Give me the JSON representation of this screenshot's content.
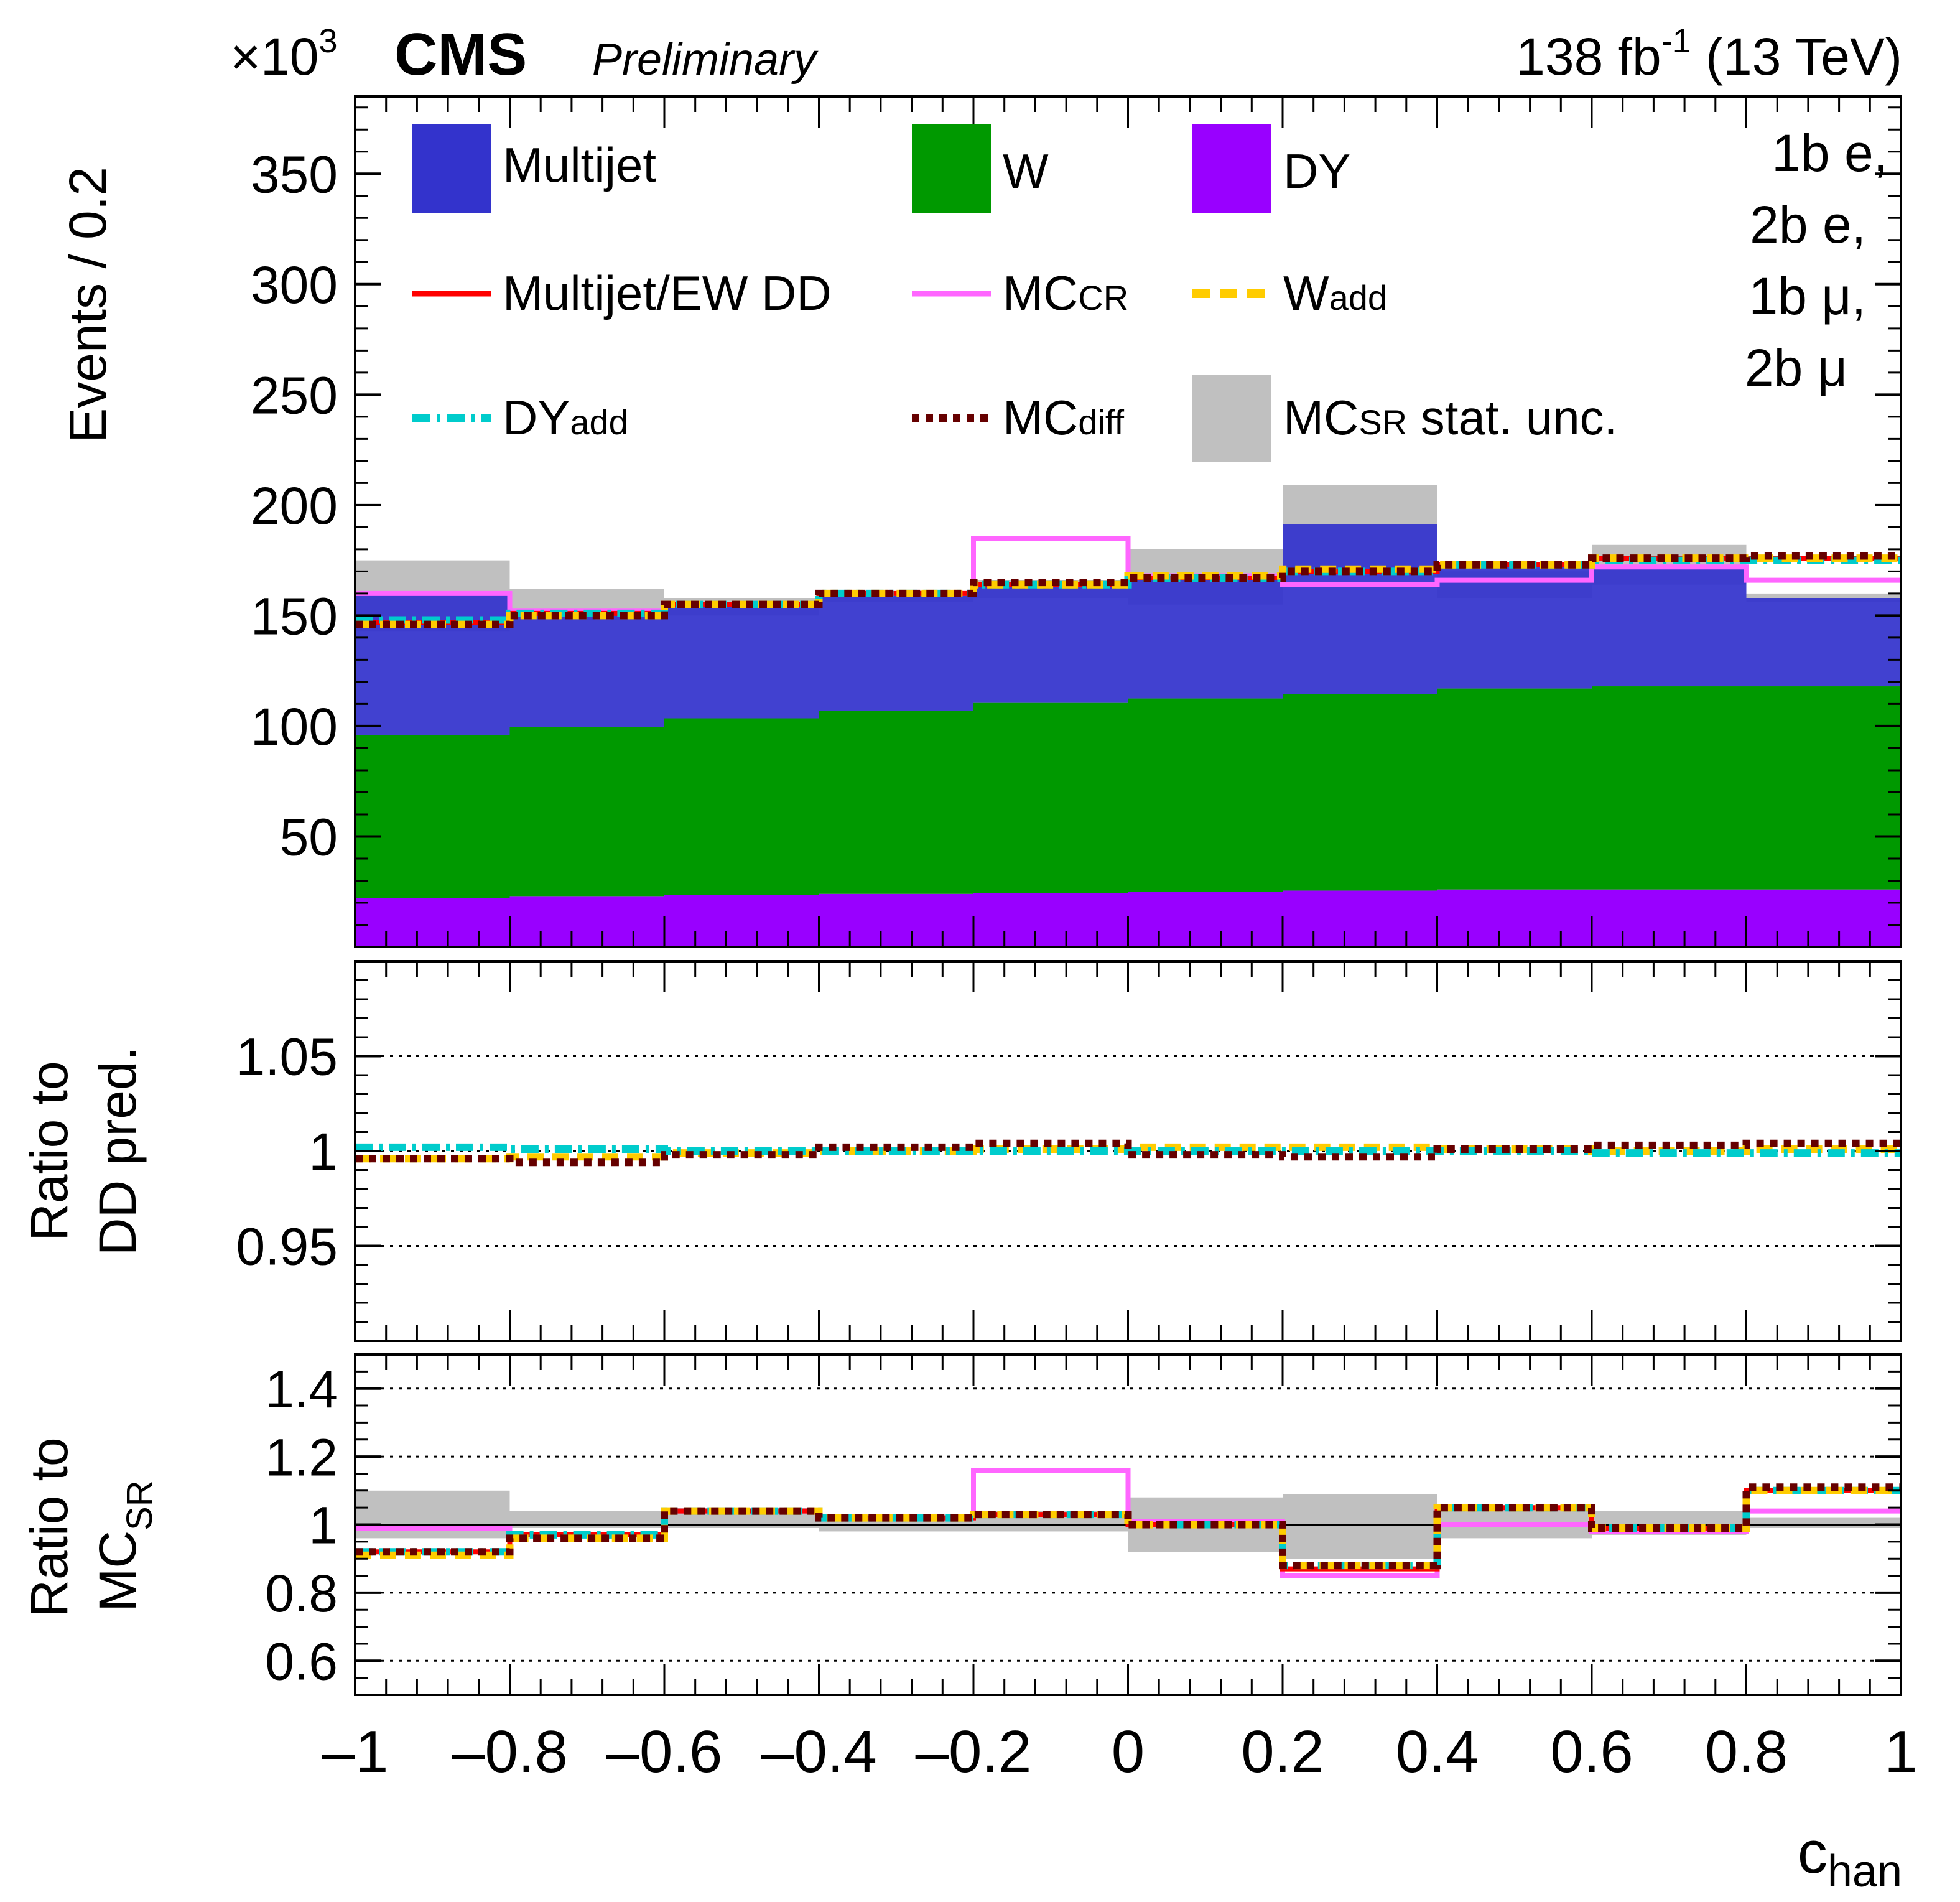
{
  "header": {
    "exponent_prefix": "×10",
    "exponent": "3",
    "experiment": "CMS",
    "status": "Preliminary",
    "lumi_value": "138 fb",
    "lumi_exp": "-1",
    "energy": "(13 TeV)"
  },
  "category_lines": [
    "1b e,",
    "2b e,",
    "1b μ,",
    "2b μ"
  ],
  "legend": {
    "multijet": "Multijet",
    "w": "W",
    "dy": "DY",
    "multijet_ew_dd": "Multijet/EW DD",
    "mc_cr_main": "MC",
    "mc_cr_sub": "CR",
    "w_add_main": "W",
    "w_add_sub": "add",
    "dy_add_main": "DY",
    "dy_add_sub": "add",
    "mc_diff_main": "MC",
    "mc_diff_sub": "diff",
    "mc_sr_main": "MC",
    "mc_sr_sub": "SR",
    "mc_sr_rest": " stat. unc."
  },
  "colors": {
    "multijet": "#3333cc",
    "w": "#009900",
    "dy": "#9900ff",
    "multijet_ew_dd": "#ff0000",
    "mc_cr": "#ff66ff",
    "w_add": "#ffcc00",
    "dy_add": "#00cccc",
    "mc_diff": "#660000",
    "mc_sr_unc": "#c0c0c0"
  },
  "axes": {
    "xlabel_main": "c",
    "xlabel_sub": "han",
    "top_ylabel": "Events / 0.2",
    "mid_ylabel_line1": "Ratio to",
    "mid_ylabel_line2": "DD pred.",
    "bot_ylabel_line1": "Ratio to",
    "bot_ylabel_line2": "MC",
    "bot_ylabel_sub": "SR"
  },
  "chart_data": {
    "type": "bar",
    "bin_edges": [
      -1,
      -0.8,
      -0.6,
      -0.4,
      -0.2,
      0,
      0.2,
      0.4,
      0.6,
      0.8,
      1
    ],
    "x_ticks": [
      {
        "v": -1,
        "t": "–1"
      },
      {
        "v": -0.8,
        "t": "–0.8"
      },
      {
        "v": -0.6,
        "t": "–0.6"
      },
      {
        "v": -0.4,
        "t": "–0.4"
      },
      {
        "v": -0.2,
        "t": "–0.2"
      },
      {
        "v": 0,
        "t": "0"
      },
      {
        "v": 0.2,
        "t": "0.2"
      },
      {
        "v": 0.4,
        "t": "0.4"
      },
      {
        "v": 0.6,
        "t": "0.6"
      },
      {
        "v": 0.8,
        "t": "0.8"
      },
      {
        "v": 1,
        "t": "1"
      }
    ],
    "xlim": [
      -1,
      1
    ],
    "top_panel": {
      "ylim": [
        0,
        385
      ],
      "y_ticks": [
        "50",
        "100",
        "150",
        "200",
        "250",
        "300",
        "350"
      ],
      "stack_order": [
        "dy",
        "w",
        "multijet"
      ],
      "stacked": {
        "dy": [
          22,
          23,
          23.5,
          24,
          24.5,
          25,
          25.5,
          26,
          26,
          26
        ],
        "w": [
          74,
          76.5,
          80,
          83,
          86,
          87.5,
          89,
          91,
          92,
          92
        ],
        "multijet": [
          64,
          52,
          52,
          53,
          53.5,
          56,
          77,
          55,
          55,
          40
        ]
      },
      "mc_sr_unc": {
        "low": [
          143,
          148,
          150,
          156,
          158,
          155,
          172,
          158,
          164,
          156
        ],
        "high": [
          175,
          162,
          158,
          161,
          166,
          180,
          209,
          170,
          182,
          160
        ]
      },
      "lines": {
        "multijet_ew_dd": [
          147,
          151,
          155,
          160,
          164,
          167,
          170,
          173,
          176,
          176
        ],
        "mc_cr": [
          160,
          152,
          155,
          160,
          185,
          168,
          164,
          166,
          172,
          166
        ],
        "w_add": [
          146,
          150,
          155,
          160,
          164,
          168,
          171,
          173,
          176,
          176
        ],
        "dy_add": [
          148,
          151,
          155,
          160,
          164,
          167,
          170,
          173,
          175,
          175
        ],
        "mc_diff": [
          146,
          150,
          155,
          160,
          165,
          167,
          170,
          173,
          176,
          177
        ]
      }
    },
    "mid_panel": {
      "ylim": [
        0.9,
        1.1
      ],
      "y_ticks": [
        {
          "v": 0.95,
          "t": "0.95"
        },
        {
          "v": 1,
          "t": "1"
        },
        {
          "v": 1.05,
          "t": "1.05"
        }
      ],
      "grid": true,
      "lines": {
        "w_add": [
          0.996,
          0.997,
          0.999,
          1.0,
          1.001,
          1.002,
          1.002,
          1.001,
          1.0,
          1.001
        ],
        "dy_add": [
          1.002,
          1.001,
          1.0,
          1.0,
          1.0,
          1.0,
          1.0,
          1.0,
          0.999,
          0.999
        ],
        "mc_diff": [
          0.996,
          0.994,
          0.998,
          1.002,
          1.004,
          0.998,
          0.997,
          1.001,
          1.003,
          1.004
        ]
      }
    },
    "bot_panel": {
      "ylim": [
        0.5,
        1.5
      ],
      "y_ticks": [
        {
          "v": 0.6,
          "t": "0.6"
        },
        {
          "v": 0.8,
          "t": "0.8"
        },
        {
          "v": 1,
          "t": "1"
        },
        {
          "v": 1.2,
          "t": "1.2"
        },
        {
          "v": 1.4,
          "t": "1.4"
        }
      ],
      "grid": true,
      "unc_band": {
        "low": [
          0.96,
          0.99,
          0.99,
          0.98,
          0.98,
          0.92,
          0.9,
          0.96,
          0.97,
          0.99
        ],
        "high": [
          1.1,
          1.04,
          1.05,
          1.02,
          1.04,
          1.08,
          1.09,
          1.05,
          1.04,
          1.02
        ]
      },
      "lines": {
        "mc_cr": [
          0.99,
          0.97,
          1.04,
          1.02,
          1.16,
          1.01,
          0.85,
          1.0,
          0.98,
          1.04
        ],
        "multijet_ew_dd": [
          0.92,
          0.97,
          1.04,
          1.02,
          1.03,
          1.0,
          0.87,
          1.05,
          0.99,
          1.1
        ],
        "w_add": [
          0.91,
          0.96,
          1.04,
          1.02,
          1.03,
          1.0,
          0.88,
          1.05,
          0.99,
          1.1
        ],
        "dy_add": [
          0.92,
          0.97,
          1.04,
          1.02,
          1.03,
          1.0,
          0.88,
          1.05,
          0.99,
          1.1
        ],
        "mc_diff": [
          0.92,
          0.96,
          1.04,
          1.02,
          1.03,
          1.0,
          0.88,
          1.05,
          0.99,
          1.11
        ]
      }
    }
  }
}
